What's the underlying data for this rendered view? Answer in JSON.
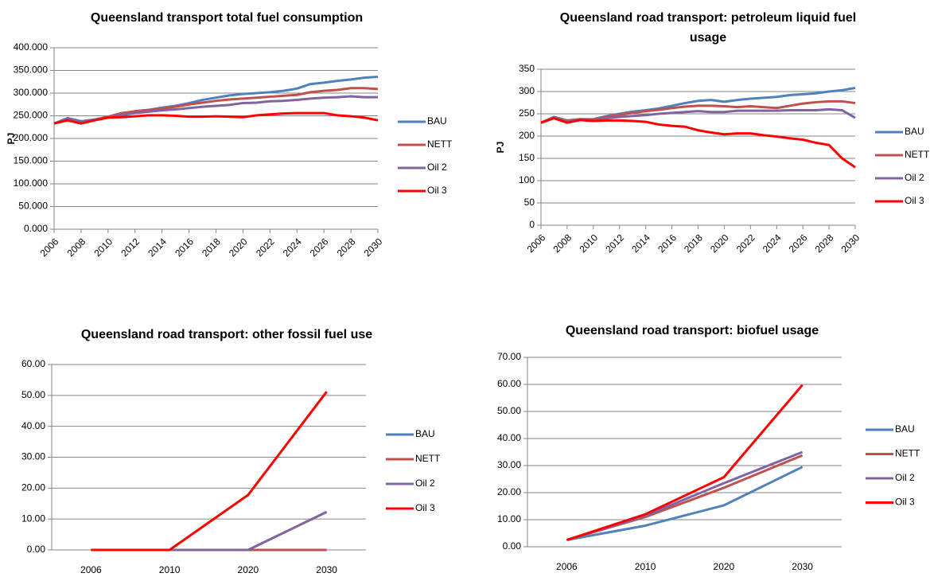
{
  "chart_data": [
    {
      "type": "line",
      "title": "Queensland transport total fuel consumption",
      "y_label": "PJ",
      "x": [
        2006,
        2007,
        2008,
        2009,
        2010,
        2011,
        2012,
        2013,
        2014,
        2015,
        2016,
        2017,
        2018,
        2019,
        2020,
        2021,
        2022,
        2023,
        2024,
        2025,
        2026,
        2027,
        2028,
        2029,
        2030
      ],
      "xlim": [
        2006,
        2030
      ],
      "xticks": [
        2006,
        2008,
        2010,
        2012,
        2014,
        2016,
        2018,
        2020,
        2022,
        2024,
        2026,
        2028,
        2030
      ],
      "ylim": [
        0,
        400
      ],
      "yticks": [
        {
          "value": 0,
          "label": "0.000"
        },
        {
          "value": 50,
          "label": "50.000"
        },
        {
          "value": 100,
          "label": "100.000"
        },
        {
          "value": 150,
          "label": "150.000"
        },
        {
          "value": 200,
          "label": "200.000"
        },
        {
          "value": 250,
          "label": "250.000"
        },
        {
          "value": 300,
          "label": "300.000"
        },
        {
          "value": 350,
          "label": "350.000"
        },
        {
          "value": 400,
          "label": "400.000"
        }
      ],
      "grid": true,
      "series": [
        {
          "name": "BAU",
          "color": "#4f81bd",
          "values": [
            233,
            245,
            238,
            242,
            248,
            255,
            260,
            263,
            268,
            272,
            278,
            285,
            290,
            295,
            298,
            300,
            302,
            305,
            310,
            320,
            323,
            327,
            330,
            334,
            336
          ]
        },
        {
          "name": "NETT",
          "color": "#c0504d",
          "values": [
            233,
            243,
            237,
            241,
            248,
            256,
            260,
            263,
            266,
            270,
            275,
            279,
            283,
            286,
            288,
            290,
            292,
            294,
            296,
            302,
            305,
            307,
            311,
            311,
            309
          ]
        },
        {
          "name": "Oil 2",
          "color": "#8064a2",
          "values": [
            233,
            243,
            237,
            241,
            246,
            252,
            256,
            259,
            262,
            264,
            267,
            270,
            272,
            274,
            278,
            279,
            282,
            283,
            285,
            288,
            290,
            291,
            293,
            291,
            291
          ]
        },
        {
          "name": "Oil 3",
          "color": "#ff0000",
          "values": [
            233,
            240,
            233,
            240,
            246,
            247,
            249,
            251,
            251,
            250,
            248,
            248,
            249,
            248,
            247,
            251,
            253,
            255,
            256,
            256,
            256,
            251,
            249,
            246,
            240
          ]
        }
      ]
    },
    {
      "type": "line",
      "title": "Queensland road transport: petroleum liquid fuel usage",
      "y_label": "PJ",
      "x": [
        2006,
        2007,
        2008,
        2009,
        2010,
        2011,
        2012,
        2013,
        2014,
        2015,
        2016,
        2017,
        2018,
        2019,
        2020,
        2021,
        2022,
        2023,
        2024,
        2025,
        2026,
        2027,
        2028,
        2029,
        2030
      ],
      "xlim": [
        2006,
        2030
      ],
      "xticks": [
        2006,
        2008,
        2010,
        2012,
        2014,
        2016,
        2018,
        2020,
        2022,
        2024,
        2026,
        2028,
        2030
      ],
      "ylim": [
        0,
        350
      ],
      "yticks": [
        0,
        50,
        100,
        150,
        200,
        250,
        300,
        350
      ],
      "grid": true,
      "series": [
        {
          "name": "BAU",
          "color": "#4f81bd",
          "values": [
            230,
            243,
            235,
            238,
            238,
            245,
            250,
            255,
            258,
            262,
            268,
            274,
            279,
            281,
            277,
            281,
            284,
            286,
            288,
            292,
            294,
            296,
            300,
            303,
            308
          ]
        },
        {
          "name": "NETT",
          "color": "#c0504d",
          "values": [
            230,
            242,
            235,
            238,
            237,
            243,
            248,
            252,
            256,
            259,
            263,
            266,
            268,
            268,
            267,
            265,
            267,
            265,
            263,
            268,
            273,
            276,
            278,
            278,
            274
          ]
        },
        {
          "name": "Oil 2",
          "color": "#8064a2",
          "values": [
            230,
            242,
            233,
            237,
            236,
            240,
            243,
            245,
            247,
            250,
            252,
            254,
            256,
            254,
            254,
            257,
            257,
            257,
            257,
            258,
            258,
            258,
            260,
            258,
            241
          ]
        },
        {
          "name": "Oil 3",
          "color": "#ff0000",
          "values": [
            230,
            240,
            230,
            236,
            234,
            235,
            235,
            234,
            232,
            226,
            223,
            221,
            213,
            208,
            204,
            206,
            206,
            202,
            199,
            195,
            192,
            185,
            180,
            150,
            130
          ]
        }
      ]
    },
    {
      "type": "line",
      "title": "Queensland road transport: other fossil fuel use",
      "categories": [
        "2006",
        "2010",
        "2020",
        "2030"
      ],
      "ylim": [
        0,
        60
      ],
      "yticks": [
        {
          "value": 0,
          "label": "0.00"
        },
        {
          "value": 10,
          "label": "10.00"
        },
        {
          "value": 20,
          "label": "20.00"
        },
        {
          "value": 30,
          "label": "30.00"
        },
        {
          "value": 40,
          "label": "40.00"
        },
        {
          "value": 50,
          "label": "50.00"
        },
        {
          "value": 60,
          "label": "60.00"
        }
      ],
      "grid": true,
      "series": [
        {
          "name": "BAU",
          "color": "#4f81bd",
          "values": [
            0,
            0,
            0,
            0
          ]
        },
        {
          "name": "NETT",
          "color": "#c0504d",
          "values": [
            0,
            0,
            0,
            0
          ]
        },
        {
          "name": "Oil 2",
          "color": "#8064a2",
          "values": [
            0,
            0,
            0,
            12.3
          ]
        },
        {
          "name": "Oil 3",
          "color": "#ff0000",
          "values": [
            0,
            0,
            17.8,
            51.2
          ]
        }
      ]
    },
    {
      "type": "line",
      "title": "Queensland road transport: biofuel usage",
      "categories": [
        "2006",
        "2010",
        "2020",
        "2030"
      ],
      "ylim": [
        0,
        70
      ],
      "yticks": [
        {
          "value": 0,
          "label": "0.00"
        },
        {
          "value": 10,
          "label": "10.00"
        },
        {
          "value": 20,
          "label": "20.00"
        },
        {
          "value": 30,
          "label": "30.00"
        },
        {
          "value": 40,
          "label": "40.00"
        },
        {
          "value": 50,
          "label": "50.00"
        },
        {
          "value": 60,
          "label": "60.00"
        },
        {
          "value": 70,
          "label": "70.00"
        }
      ],
      "grid": true,
      "series": [
        {
          "name": "BAU",
          "color": "#4f81bd",
          "values": [
            2.5,
            7.8,
            15.3,
            29.5
          ]
        },
        {
          "name": "NETT",
          "color": "#c0504d",
          "values": [
            2.5,
            11,
            21.8,
            33.8
          ]
        },
        {
          "name": "Oil 2",
          "color": "#8064a2",
          "values": [
            2.5,
            11.5,
            23.5,
            35
          ]
        },
        {
          "name": "Oil 3",
          "color": "#ff0000",
          "values": [
            2.5,
            12,
            25.7,
            59.8
          ]
        }
      ]
    }
  ]
}
